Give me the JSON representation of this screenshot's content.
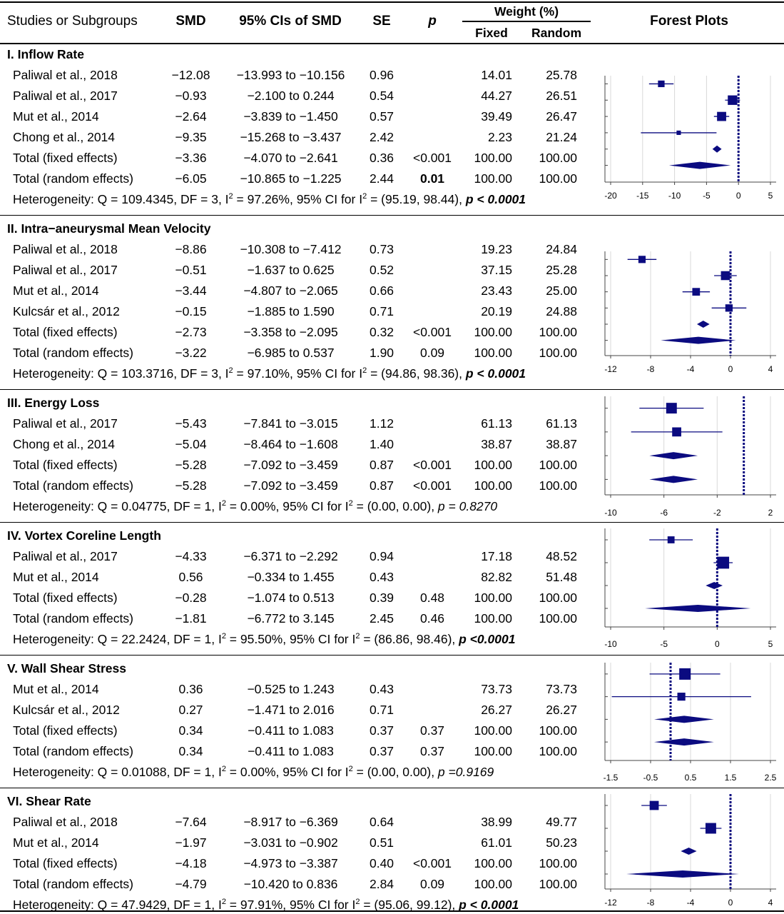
{
  "header": {
    "studies": "Studies or Subgroups",
    "smd": "SMD",
    "ci": "95% CIs of SMD",
    "se": "SE",
    "p": "p",
    "weight": "Weight (%)",
    "fixed": "Fixed",
    "random": "Random",
    "forest": "Forest Plots"
  },
  "sections": [
    {
      "title": "I. Inflow Rate",
      "rows": [
        {
          "study": "Paliwal et al., 2018",
          "smd": "−12.08",
          "ci": "−13.993 to −10.156",
          "se": "0.96",
          "p": "",
          "fixed": "14.01",
          "random": "25.78"
        },
        {
          "study": "Paliwal et al., 2017",
          "smd": "−0.93",
          "ci": "−2.100 to 0.244",
          "se": "0.54",
          "p": "",
          "fixed": "44.27",
          "random": "26.51"
        },
        {
          "study": "Mut et al., 2014",
          "smd": "−2.64",
          "ci": "−3.839 to −1.450",
          "se": "0.57",
          "p": "",
          "fixed": "39.49",
          "random": "26.47"
        },
        {
          "study": "Chong et al., 2014",
          "smd": "−9.35",
          "ci": "−15.268 to −3.437",
          "se": "2.42",
          "p": "",
          "fixed": "2.23",
          "random": "21.24"
        },
        {
          "study": "Total (fixed effects)",
          "smd": "−3.36",
          "ci": "−4.070 to −2.641",
          "se": "0.36",
          "p": "<0.001",
          "fixed": "100.00",
          "random": "100.00"
        },
        {
          "study": "Total (random effects)",
          "smd": "−6.05",
          "ci": "−10.865 to −1.225",
          "se": "2.44",
          "p": "0.01",
          "pBold": true,
          "fixed": "100.00",
          "random": "100.00"
        }
      ],
      "het": {
        "q": "Heterogeneity: Q = 109.4345, DF = 3, I",
        "i2": "2",
        "mid": " = 97.26%, 95% CI for I",
        "i2b": "2",
        "ci": " = (95.19, 98.44), ",
        "p": "p < 0.0001",
        "pBold": true
      },
      "plot": {
        "xlim": [
          -20,
          5
        ],
        "ticks": [
          "-20",
          "-15",
          "-10",
          "-5",
          "0",
          "5"
        ],
        "tickVals": [
          -20,
          -15,
          -10,
          -5,
          0,
          5
        ],
        "studies": [
          {
            "est": -12.08,
            "lo": -13.993,
            "hi": -10.156,
            "w": 14.01
          },
          {
            "est": -0.93,
            "lo": -2.1,
            "hi": 0.244,
            "w": 44.27
          },
          {
            "est": -2.64,
            "lo": -3.839,
            "hi": -1.45,
            "w": 39.49
          },
          {
            "est": -9.35,
            "lo": -15.268,
            "hi": -3.437,
            "w": 2.23
          }
        ],
        "fixed": {
          "est": -3.36,
          "lo": -4.07,
          "hi": -2.641
        },
        "random": {
          "est": -6.05,
          "lo": -10.865,
          "hi": -1.225
        },
        "refline": 0
      }
    },
    {
      "title": "II. Intra−aneurysmal Mean Velocity",
      "rows": [
        {
          "study": "Paliwal et al., 2018",
          "smd": "−8.86",
          "ci": "−10.308 to −7.412",
          "se": "0.73",
          "p": "",
          "fixed": "19.23",
          "random": "24.84"
        },
        {
          "study": "Paliwal et al., 2017",
          "smd": "−0.51",
          "ci": "−1.637 to 0.625",
          "se": "0.52",
          "p": "",
          "fixed": "37.15",
          "random": "25.28"
        },
        {
          "study": "Mut et al., 2014",
          "smd": "−3.44",
          "ci": "−4.807 to −2.065",
          "se": "0.66",
          "p": "",
          "fixed": "23.43",
          "random": "25.00"
        },
        {
          "study": "Kulcsár et al., 2012",
          "smd": "−0.15",
          "ci": "−1.885 to 1.590",
          "se": "0.71",
          "p": "",
          "fixed": "20.19",
          "random": "24.88"
        },
        {
          "study": "Total (fixed effects)",
          "smd": "−2.73",
          "ci": "−3.358 to −2.095",
          "se": "0.32",
          "p": "<0.001",
          "fixed": "100.00",
          "random": "100.00"
        },
        {
          "study": "Total (random effects)",
          "smd": "−3.22",
          "ci": "−6.985 to 0.537",
          "se": "1.90",
          "p": "0.09",
          "fixed": "100.00",
          "random": "100.00"
        }
      ],
      "het": {
        "q": "Heterogeneity: Q = 103.3716, DF = 3, I",
        "i2": "2",
        "mid": " = 97.10%, 95% CI for I",
        "i2b": "2",
        "ci": " = (94.86, 98.36), ",
        "p": "p < 0.0001",
        "pBold": true
      },
      "plot": {
        "xlim": [
          -12,
          4
        ],
        "ticks": [
          "-12",
          "-8",
          "-4",
          "0",
          "4"
        ],
        "tickVals": [
          -12,
          -8,
          -4,
          0,
          4
        ],
        "studies": [
          {
            "est": -8.86,
            "lo": -10.308,
            "hi": -7.412,
            "w": 19.23
          },
          {
            "est": -0.51,
            "lo": -1.637,
            "hi": 0.625,
            "w": 37.15
          },
          {
            "est": -3.44,
            "lo": -4.807,
            "hi": -2.065,
            "w": 23.43
          },
          {
            "est": -0.15,
            "lo": -1.885,
            "hi": 1.59,
            "w": 20.19
          }
        ],
        "fixed": {
          "est": -2.73,
          "lo": -3.358,
          "hi": -2.095
        },
        "random": {
          "est": -3.22,
          "lo": -6.985,
          "hi": 0.537
        },
        "refline": 0
      }
    },
    {
      "title": "III. Energy Loss",
      "rows": [
        {
          "study": "Paliwal et al., 2017",
          "smd": "−5.43",
          "ci": "−7.841 to −3.015",
          "se": "1.12",
          "p": "",
          "fixed": "61.13",
          "random": "61.13"
        },
        {
          "study": "Chong et al., 2014",
          "smd": "−5.04",
          "ci": "−8.464 to −1.608",
          "se": "1.40",
          "p": "",
          "fixed": "38.87",
          "random": "38.87"
        },
        {
          "study": "Total (fixed effects)",
          "smd": "−5.28",
          "ci": "−7.092 to −3.459",
          "se": "0.87",
          "p": "<0.001",
          "fixed": "100.00",
          "random": "100.00"
        },
        {
          "study": "Total (random effects)",
          "smd": "−5.28",
          "ci": "−7.092 to −3.459",
          "se": "0.87",
          "p": "<0.001",
          "fixed": "100.00",
          "random": "100.00"
        }
      ],
      "het": {
        "q": "Heterogeneity: Q = 0.04775, DF = 1, I",
        "i2": "2",
        "mid": " = 0.00%, 95% CI for I",
        "i2b": "2",
        "ci": " = (0.00, 0.00), ",
        "p": "p = 0.8270",
        "pBold": false
      },
      "plot": {
        "xlim": [
          -10,
          2
        ],
        "ticks": [
          "-10",
          "-6",
          "-2",
          "2"
        ],
        "tickVals": [
          -10,
          -6,
          -2,
          2
        ],
        "studies": [
          {
            "est": -5.43,
            "lo": -7.841,
            "hi": -3.015,
            "w": 61.13
          },
          {
            "est": -5.04,
            "lo": -8.464,
            "hi": -1.608,
            "w": 38.87
          }
        ],
        "fixed": {
          "est": -5.28,
          "lo": -7.092,
          "hi": -3.459
        },
        "random": {
          "est": -5.28,
          "lo": -7.092,
          "hi": -3.459
        },
        "refline": 0
      }
    },
    {
      "title": "IV. Vortex Coreline Length",
      "rows": [
        {
          "study": "Paliwal et al., 2017",
          "smd": "−4.33",
          "ci": "−6.371 to −2.292",
          "se": "0.94",
          "p": "",
          "fixed": "17.18",
          "random": "48.52"
        },
        {
          "study": "Mut et al., 2014",
          "smd": "0.56",
          "ci": "−0.334 to 1.455",
          "se": "0.43",
          "p": "",
          "fixed": "82.82",
          "random": "51.48"
        },
        {
          "study": "Total (fixed effects)",
          "smd": "−0.28",
          "ci": "−1.074 to 0.513",
          "se": "0.39",
          "p": "0.48",
          "fixed": "100.00",
          "random": "100.00"
        },
        {
          "study": "Total (random effects)",
          "smd": "−1.81",
          "ci": "−6.772 to 3.145",
          "se": "2.45",
          "p": "0.46",
          "fixed": "100.00",
          "random": "100.00"
        }
      ],
      "het": {
        "q": "Heterogeneity: Q = 22.2424, DF = 1, I",
        "i2": "2",
        "mid": " = 95.50%, 95% CI for I",
        "i2b": "2",
        "ci": " = (86.86, 98.46), ",
        "p": "p <0.0001",
        "pBold": true
      },
      "plot": {
        "xlim": [
          -10,
          5
        ],
        "ticks": [
          "-10",
          "-5",
          "0",
          "5"
        ],
        "tickVals": [
          -10,
          -5,
          0,
          5
        ],
        "studies": [
          {
            "est": -4.33,
            "lo": -6.371,
            "hi": -2.292,
            "w": 17.18
          },
          {
            "est": 0.56,
            "lo": -0.334,
            "hi": 1.455,
            "w": 82.82
          }
        ],
        "fixed": {
          "est": -0.28,
          "lo": -1.074,
          "hi": 0.513
        },
        "random": {
          "est": -1.81,
          "lo": -6.772,
          "hi": 3.145
        },
        "refline": 0
      }
    },
    {
      "title": "V. Wall Shear Stress",
      "rows": [
        {
          "study": "Mut et al., 2014",
          "smd": "0.36",
          "ci": "−0.525 to 1.243",
          "se": "0.43",
          "p": "",
          "fixed": "73.73",
          "random": "73.73"
        },
        {
          "study": "Kulcsár et al., 2012",
          "smd": "0.27",
          "ci": "−1.471 to 2.016",
          "se": "0.71",
          "p": "",
          "fixed": "26.27",
          "random": "26.27"
        },
        {
          "study": "Total (fixed effects)",
          "smd": "0.34",
          "ci": "−0.411 to 1.083",
          "se": "0.37",
          "p": "0.37",
          "fixed": "100.00",
          "random": "100.00"
        },
        {
          "study": "Total (random effects)",
          "smd": "0.34",
          "ci": "−0.411 to 1.083",
          "se": "0.37",
          "p": "0.37",
          "fixed": "100.00",
          "random": "100.00"
        }
      ],
      "het": {
        "q": "Heterogeneity: Q = 0.01088, DF = 1, I",
        "i2": "2",
        "mid": " = 0.00%, 95% CI for I",
        "i2b": "2",
        "ci": " = (0.00, 0.00), ",
        "p": "p =0.9169",
        "pBold": false
      },
      "plot": {
        "xlim": [
          -1.5,
          2.5
        ],
        "ticks": [
          "-1.5",
          "-0.5",
          "0.5",
          "1.5",
          "2.5"
        ],
        "tickVals": [
          -1.5,
          -0.5,
          0.5,
          1.5,
          2.5
        ],
        "studies": [
          {
            "est": 0.36,
            "lo": -0.525,
            "hi": 1.243,
            "w": 73.73
          },
          {
            "est": 0.27,
            "lo": -1.471,
            "hi": 2.016,
            "w": 26.27
          }
        ],
        "fixed": {
          "est": 0.34,
          "lo": -0.411,
          "hi": 1.083
        },
        "random": {
          "est": 0.34,
          "lo": -0.411,
          "hi": 1.083
        },
        "refline": 0
      }
    },
    {
      "title": "VI. Shear Rate",
      "rows": [
        {
          "study": "Paliwal et al., 2018",
          "smd": "−7.64",
          "ci": "−8.917 to −6.369",
          "se": "0.64",
          "p": "",
          "fixed": "38.99",
          "random": "49.77"
        },
        {
          "study": "Mut et al., 2014",
          "smd": "−1.97",
          "ci": "−3.031 to −0.902",
          "se": "0.51",
          "p": "",
          "fixed": "61.01",
          "random": "50.23"
        },
        {
          "study": "Total (fixed effects)",
          "smd": "−4.18",
          "ci": "−4.973 to −3.387",
          "se": "0.40",
          "p": "<0.001",
          "fixed": "100.00",
          "random": "100.00"
        },
        {
          "study": "Total (random effects)",
          "smd": "−4.79",
          "ci": "−10.420 to 0.836",
          "se": "2.84",
          "p": "0.09",
          "fixed": "100.00",
          "random": "100.00"
        }
      ],
      "het": {
        "q": "Heterogeneity: Q = 47.9429, DF = 1, I",
        "i2": "2",
        "mid": " = 97.91%, 95% CI for I",
        "i2b": "2",
        "ci": " = (95.06, 99.12), ",
        "p": "p < 0.0001",
        "pBold": true
      },
      "plot": {
        "xlim": [
          -12,
          4
        ],
        "ticks": [
          "-12",
          "-8",
          "-4",
          "0",
          "4"
        ],
        "tickVals": [
          -12,
          -8,
          -4,
          0,
          4
        ],
        "studies": [
          {
            "est": -7.64,
            "lo": -8.917,
            "hi": -6.369,
            "w": 38.99
          },
          {
            "est": -1.97,
            "lo": -3.031,
            "hi": -0.902,
            "w": 61.01
          }
        ],
        "fixed": {
          "est": -4.18,
          "lo": -4.973,
          "hi": -3.387
        },
        "random": {
          "est": -4.79,
          "lo": -10.42,
          "hi": 0.836
        },
        "refline": 0
      }
    }
  ],
  "colors": {
    "marker": "#0b0b80",
    "grid": "#d9d9d9",
    "axis": "#444444"
  }
}
